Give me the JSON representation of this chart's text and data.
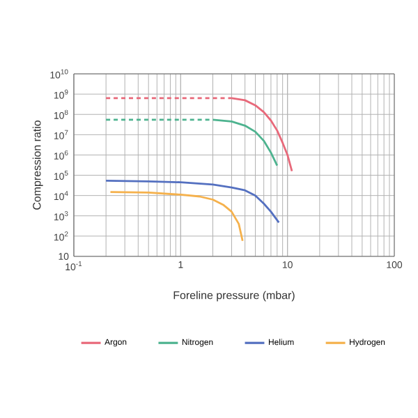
{
  "chart_data": {
    "type": "line",
    "xlabel": "Foreline pressure (mbar)",
    "ylabel": "Compression ratio",
    "log": "xy",
    "grid": true,
    "legend": "bottom",
    "marker": "none",
    "xlim": [
      0.1,
      100
    ],
    "ylim": [
      10,
      10000000000
    ],
    "xticks": [
      {
        "value": 0.1,
        "label": "10$^{-1}$"
      },
      1,
      10,
      100
    ],
    "yticks": [
      10,
      {
        "value": 100,
        "label": "10$^{2}$"
      },
      {
        "value": 1000,
        "label": "10$^{3}$"
      },
      {
        "value": 10000,
        "label": "10$^{4}$"
      },
      {
        "value": 100000,
        "label": "10$^{5}$"
      },
      {
        "value": 1000000,
        "label": "10$^{6}$"
      },
      {
        "value": 10000000,
        "label": "10$^{7}$"
      },
      {
        "value": 100000000,
        "label": "10$^{8}$"
      },
      {
        "value": 1000000000,
        "label": "10$^{9}$"
      },
      {
        "value": 10000000000,
        "label": "10$^{10}$"
      }
    ],
    "series": [
      {
        "color": "#e8697a",
        "line_style": "dashed",
        "x": [
          0.2,
          3
        ],
        "values": [
          630000000,
          630000000
        ]
      },
      {
        "name": "Argon",
        "color": "#e8697a",
        "line_style": "solid",
        "x": [
          3,
          4,
          5,
          6,
          7,
          8,
          9,
          10,
          11
        ],
        "values": [
          630000000,
          500000000,
          280000000,
          130000000,
          50000000,
          16000000,
          4000000,
          1000000,
          160000
        ]
      },
      {
        "color": "#4db38f",
        "line_style": "dashed",
        "x": [
          0.2,
          2
        ],
        "values": [
          55000000,
          55000000
        ]
      },
      {
        "name": "Nitrogen",
        "color": "#4db38f",
        "line_style": "solid",
        "x": [
          2,
          3,
          4,
          5,
          6,
          7,
          8
        ],
        "values": [
          55000000,
          45000000,
          28000000,
          14000000,
          5000000,
          1300000,
          300000
        ]
      },
      {
        "name": "Helium",
        "color": "#5470c0",
        "line_style": "solid",
        "x": [
          0.2,
          0.5,
          1,
          2,
          3,
          4,
          5,
          6,
          7,
          8.3
        ],
        "values": [
          54000,
          50000,
          45000,
          35000,
          25000,
          18000,
          10000,
          4000,
          1600,
          470
        ]
      },
      {
        "name": "Hydrogen",
        "color": "#f5b14c",
        "line_style": "solid",
        "x": [
          0.22,
          0.5,
          1,
          1.5,
          2,
          2.5,
          3,
          3.5,
          3.8
        ],
        "values": [
          15000,
          14000,
          11000,
          9000,
          6300,
          3500,
          1600,
          400,
          58
        ]
      }
    ]
  }
}
